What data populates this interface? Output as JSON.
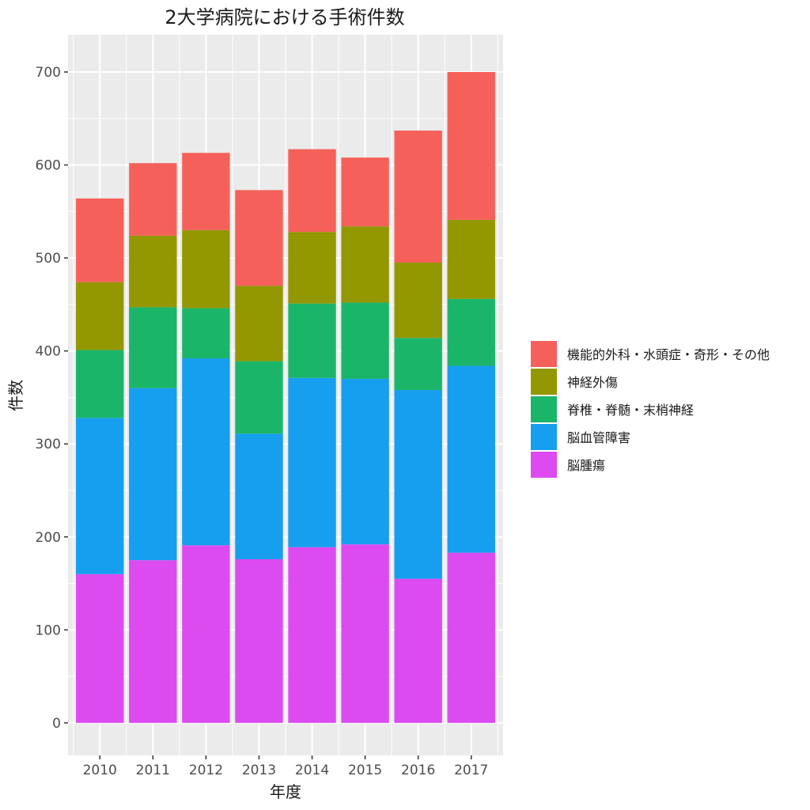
{
  "chart_data": {
    "type": "bar",
    "stacked": true,
    "title": "2大学病院における手術件数",
    "xlabel": "年度",
    "ylabel": "件数",
    "ylim": [
      -35,
      740
    ],
    "yticks": [
      0,
      100,
      200,
      300,
      400,
      500,
      600,
      700
    ],
    "categories": [
      "2010",
      "2011",
      "2012",
      "2013",
      "2014",
      "2015",
      "2016",
      "2017"
    ],
    "grid": true,
    "legend_position": "right",
    "series": [
      {
        "name": "脳腫瘍",
        "color": "#DB4BF0",
        "values": [
          160,
          175,
          191,
          176,
          189,
          192,
          155,
          183
        ]
      },
      {
        "name": "脳血管障害",
        "color": "#169EEF",
        "values": [
          168,
          185,
          201,
          135,
          182,
          178,
          203,
          201
        ]
      },
      {
        "name": "脊椎・脊髄・末梢神経",
        "color": "#1BB56A",
        "values": [
          73,
          87,
          54,
          78,
          80,
          82,
          56,
          72
        ]
      },
      {
        "name": "神経外傷",
        "color": "#939700",
        "values": [
          73,
          77,
          84,
          81,
          77,
          82,
          81,
          85
        ]
      },
      {
        "name": "機能的外科・水頭症・奇形・その他",
        "color": "#F5615A",
        "values": [
          90,
          78,
          83,
          103,
          89,
          74,
          142,
          159
        ]
      }
    ],
    "legend_order": [
      "機能的外科・水頭症・奇形・その他",
      "神経外傷",
      "脊椎・脊髄・末梢神経",
      "脳血管障害",
      "脳腫瘍"
    ]
  }
}
